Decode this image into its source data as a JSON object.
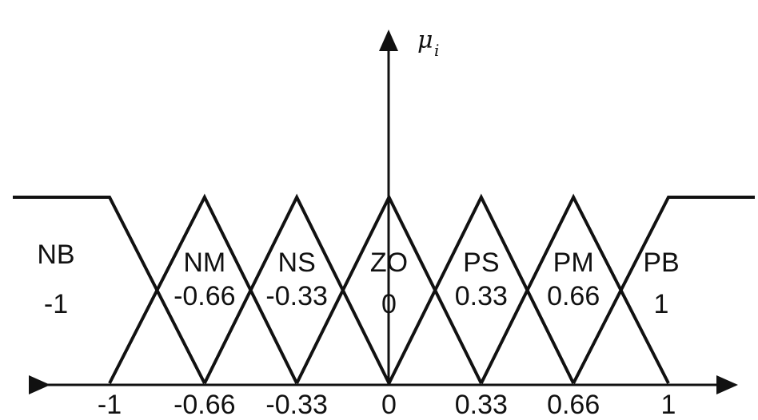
{
  "y_axis_label": "μ",
  "y_axis_subscript": "i",
  "x_axis": {
    "min": -1,
    "max": 1,
    "ticks": [
      {
        "value": -1,
        "label": "-1"
      },
      {
        "value": -0.66,
        "label": "-0.66"
      },
      {
        "value": -0.33,
        "label": "-0.33"
      },
      {
        "value": 0,
        "label": "0"
      },
      {
        "value": 0.33,
        "label": "0.33"
      },
      {
        "value": 0.66,
        "label": "0.66"
      },
      {
        "value": 1,
        "label": "1"
      }
    ]
  },
  "fuzzy_sets": [
    {
      "name": "NB",
      "center_label": "-1",
      "shape": "left-shoulder",
      "points": [
        -1,
        -0.66
      ]
    },
    {
      "name": "NM",
      "center_label": "-0.66",
      "shape": "triangle",
      "points": [
        -1,
        -0.66,
        -0.33
      ]
    },
    {
      "name": "NS",
      "center_label": "-0.33",
      "shape": "triangle",
      "points": [
        -0.66,
        -0.33,
        0
      ]
    },
    {
      "name": "ZO",
      "center_label": "0",
      "shape": "triangle",
      "points": [
        -0.33,
        0,
        0.33
      ]
    },
    {
      "name": "PS",
      "center_label": "0.33",
      "shape": "triangle",
      "points": [
        0,
        0.33,
        0.66
      ]
    },
    {
      "name": "PM",
      "center_label": "0.66",
      "shape": "triangle",
      "points": [
        0.33,
        0.66,
        1
      ]
    },
    {
      "name": "PB",
      "center_label": "1",
      "shape": "right-shoulder",
      "points": [
        0.66,
        1
      ]
    }
  ]
}
